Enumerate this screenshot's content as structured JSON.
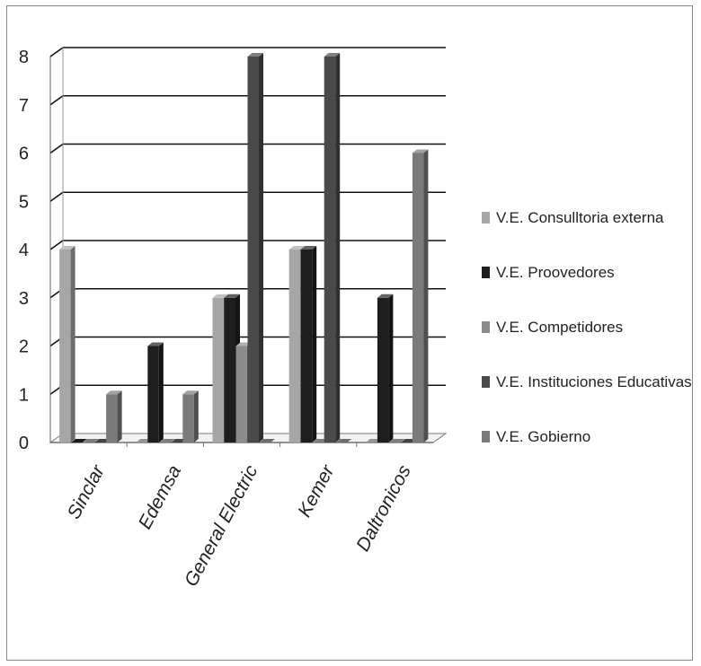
{
  "chart_data": {
    "type": "bar",
    "title": "",
    "xlabel": "",
    "ylabel": "",
    "categories": [
      "Sinclar",
      "Edemsa",
      "General Electric",
      "Kemer",
      "Daltronicos"
    ],
    "series": [
      {
        "name": "V.E. Consulltoria externa",
        "color": "#a6a6a6",
        "values": [
          4,
          0,
          3,
          4,
          0
        ]
      },
      {
        "name": "V.E. Proovedores",
        "color": "#1e1e1e",
        "values": [
          0,
          2,
          3,
          4,
          3
        ]
      },
      {
        "name": "V.E. Competidores",
        "color": "#8c8c8c",
        "values": [
          0,
          0,
          2,
          0,
          0
        ]
      },
      {
        "name": "V.E. Instituciones Educativas",
        "color": "#4a4a4a",
        "values": [
          0,
          0,
          8,
          8,
          0
        ]
      },
      {
        "name": "V.E. Gobierno",
        "color": "#7a7a7a",
        "values": [
          1,
          1,
          0,
          0,
          6
        ]
      }
    ],
    "ylim": [
      0,
      8
    ],
    "yticks": [
      0,
      1,
      2,
      3,
      4,
      5,
      6,
      7,
      8
    ],
    "grid": true,
    "legend_position": "right"
  }
}
